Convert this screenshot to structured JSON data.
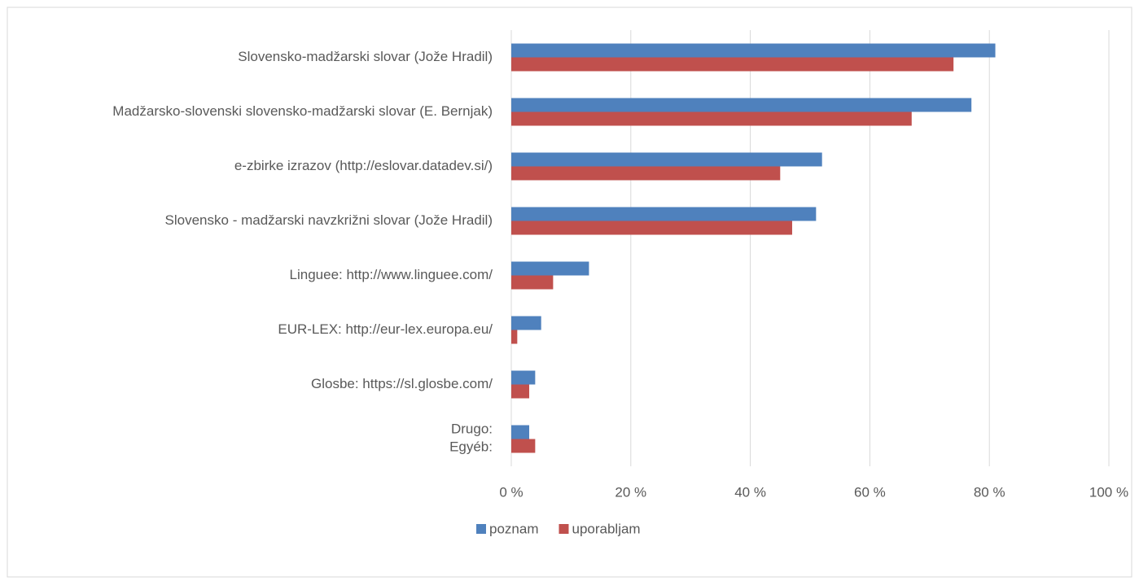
{
  "chart_data": {
    "type": "bar",
    "orientation": "horizontal",
    "categories": [
      "Slovensko-madžarski slovar (Jože Hradil)",
      "Madžarsko-slovenski slovensko-madžarski slovar (E. Bernjak)",
      "e-zbirke izrazov (http://eslovar.datadev.si/)",
      "Slovensko - madžarski navzkrižni slovar (Jože Hradil)",
      "Linguee: http://www.linguee.com/",
      "EUR-LEX: http://eur-lex.europa.eu/",
      "Glosbe: https://sl.glosbe.com/",
      "Drugo:\nEgyéb:"
    ],
    "series": [
      {
        "name": "poznam",
        "color": "#4f81bd",
        "values": [
          81,
          77,
          52,
          51,
          13,
          5,
          4,
          3
        ]
      },
      {
        "name": "uporabljam",
        "color": "#c0504d",
        "values": [
          74,
          67,
          45,
          47,
          7,
          1,
          3,
          4
        ]
      }
    ],
    "xlim": [
      0,
      100
    ],
    "xticks": [
      {
        "value": 0,
        "label": "0 %"
      },
      {
        "value": 20,
        "label": "20 %"
      },
      {
        "value": 40,
        "label": "40 %"
      },
      {
        "value": 60,
        "label": "60 %"
      },
      {
        "value": 80,
        "label": "80 %"
      },
      {
        "value": 100,
        "label": "100 %"
      }
    ],
    "grid": true,
    "legend": "bottom"
  }
}
